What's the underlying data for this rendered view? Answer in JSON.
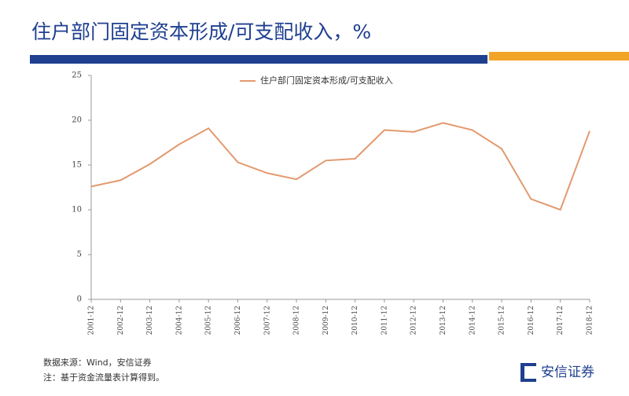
{
  "chart_data": {
    "type": "line",
    "title": "住户部门固定资本形成/可支配收入，%",
    "categories": [
      "2001-12",
      "2002-12",
      "2003-12",
      "2004-12",
      "2005-12",
      "2006-12",
      "2007-12",
      "2008-12",
      "2009-12",
      "2010-12",
      "2011-12",
      "2012-12",
      "2013-12",
      "2014-12",
      "2015-12",
      "2016-12",
      "2017-12",
      "2018-12"
    ],
    "series": [
      {
        "name": "住户部门固定资本形成/可支配收入",
        "color": "#e3996e",
        "values": [
          12.6,
          13.3,
          15.1,
          17.3,
          19.1,
          15.3,
          14.1,
          13.4,
          15.5,
          15.7,
          18.9,
          18.7,
          19.7,
          18.9,
          16.8,
          11.2,
          10.0,
          18.8
        ]
      }
    ],
    "ylim": [
      0,
      25
    ],
    "yticks": [
      0,
      5,
      10,
      15,
      20,
      25
    ],
    "legend": "top"
  },
  "footer": {
    "source": "数据来源：Wind，安信证券",
    "note": "注：基于资金流量表计算得到。",
    "logo": "安信证券"
  }
}
